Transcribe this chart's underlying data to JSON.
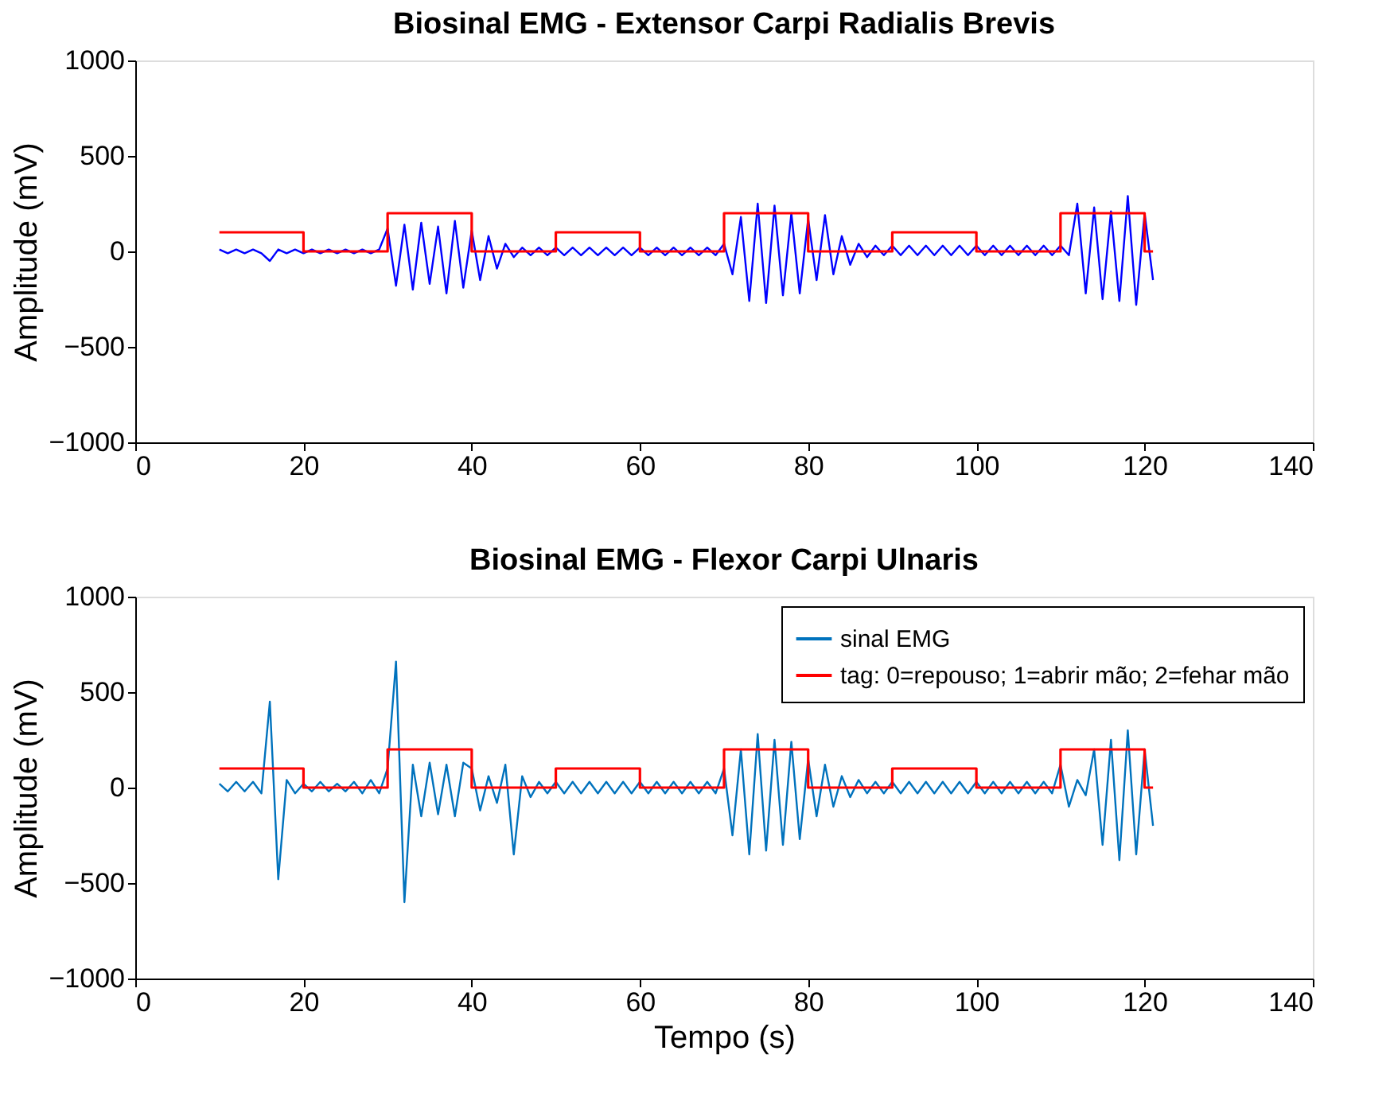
{
  "chart_data": [
    {
      "type": "line",
      "title": "Biosinal EMG - Extensor Carpi Radialis Brevis",
      "ylabel": "Amplitude (mV)",
      "xlim": [
        0,
        140
      ],
      "xticks": [
        0,
        20,
        40,
        60,
        80,
        100,
        120,
        140
      ],
      "ylim": [
        -1000,
        1000
      ],
      "yticks": [
        -1000,
        -500,
        0,
        500,
        1000
      ],
      "grid": false,
      "legend": false,
      "series": [
        {
          "type": "line",
          "color": "#0000ff",
          "x": [
            10,
            11,
            12,
            13,
            14,
            15,
            16,
            17,
            18,
            19,
            20,
            21,
            22,
            23,
            24,
            25,
            26,
            27,
            28,
            29,
            30,
            31,
            32,
            33,
            34,
            35,
            36,
            37,
            38,
            39,
            40,
            41,
            42,
            43,
            44,
            45,
            46,
            47,
            48,
            49,
            50,
            51,
            52,
            53,
            54,
            55,
            56,
            57,
            58,
            59,
            60,
            61,
            62,
            63,
            64,
            65,
            66,
            67,
            68,
            69,
            70,
            71,
            72,
            73,
            74,
            75,
            76,
            77,
            78,
            79,
            80,
            81,
            82,
            83,
            84,
            85,
            86,
            87,
            88,
            89,
            90,
            91,
            92,
            93,
            94,
            95,
            96,
            97,
            98,
            99,
            100,
            101,
            102,
            103,
            104,
            105,
            106,
            107,
            108,
            109,
            110,
            111,
            112,
            113,
            114,
            115,
            116,
            117,
            118,
            119,
            120,
            121
          ],
          "values": [
            10,
            -10,
            10,
            -10,
            10,
            -10,
            -50,
            10,
            -10,
            10,
            -10,
            10,
            -10,
            10,
            -10,
            10,
            -10,
            10,
            -10,
            10,
            120,
            -180,
            140,
            -200,
            150,
            -170,
            130,
            -220,
            160,
            -190,
            110,
            -150,
            80,
            -90,
            40,
            -30,
            20,
            -20,
            20,
            -20,
            20,
            -20,
            20,
            -20,
            20,
            -20,
            20,
            -20,
            20,
            -20,
            20,
            -20,
            20,
            -20,
            20,
            -20,
            20,
            -20,
            20,
            -20,
            40,
            -120,
            180,
            -260,
            250,
            -270,
            240,
            -230,
            200,
            -220,
            170,
            -150,
            190,
            -120,
            80,
            -70,
            40,
            -30,
            30,
            -20,
            30,
            -20,
            30,
            -20,
            30,
            -20,
            30,
            -20,
            30,
            -20,
            30,
            -20,
            30,
            -20,
            30,
            -20,
            30,
            -20,
            30,
            -20,
            30,
            -20,
            250,
            -220,
            230,
            -250,
            210,
            -260,
            290,
            -280,
            200,
            -150
          ]
        },
        {
          "type": "step",
          "color": "#ff0000",
          "x": [
            10,
            20,
            30,
            40,
            50,
            60,
            70,
            80,
            90,
            100,
            110,
            120,
            121
          ],
          "values": [
            100,
            0,
            200,
            0,
            100,
            0,
            200,
            0,
            100,
            0,
            200,
            0,
            0
          ]
        }
      ]
    },
    {
      "type": "line",
      "title": "Biosinal EMG - Flexor Carpi Ulnaris",
      "xlabel": "Tempo (s)",
      "ylabel": "Amplitude (mV)",
      "xlim": [
        0,
        140
      ],
      "xticks": [
        0,
        20,
        40,
        60,
        80,
        100,
        120,
        140
      ],
      "ylim": [
        -1000,
        1000
      ],
      "yticks": [
        -1000,
        -500,
        0,
        500,
        1000
      ],
      "grid": false,
      "legend": "top right",
      "series": [
        {
          "type": "line",
          "name": "sinal EMG",
          "color": "#0072bd",
          "x": [
            10,
            11,
            12,
            13,
            14,
            15,
            16,
            17,
            18,
            19,
            20,
            21,
            22,
            23,
            24,
            25,
            26,
            27,
            28,
            29,
            30,
            31,
            32,
            33,
            34,
            35,
            36,
            37,
            38,
            39,
            40,
            41,
            42,
            43,
            44,
            45,
            46,
            47,
            48,
            49,
            50,
            51,
            52,
            53,
            54,
            55,
            56,
            57,
            58,
            59,
            60,
            61,
            62,
            63,
            64,
            65,
            66,
            67,
            68,
            69,
            70,
            71,
            72,
            73,
            74,
            75,
            76,
            77,
            78,
            79,
            80,
            81,
            82,
            83,
            84,
            85,
            86,
            87,
            88,
            89,
            90,
            91,
            92,
            93,
            94,
            95,
            96,
            97,
            98,
            99,
            100,
            101,
            102,
            103,
            104,
            105,
            106,
            107,
            108,
            109,
            110,
            111,
            112,
            113,
            114,
            115,
            116,
            117,
            118,
            119,
            120,
            121
          ],
          "values": [
            20,
            -20,
            30,
            -20,
            30,
            -30,
            450,
            -480,
            40,
            -30,
            20,
            -20,
            30,
            -20,
            20,
            -20,
            30,
            -30,
            40,
            -30,
            100,
            660,
            -600,
            120,
            -150,
            130,
            -140,
            120,
            -150,
            130,
            100,
            -120,
            60,
            -80,
            120,
            -350,
            60,
            -50,
            30,
            -30,
            30,
            -30,
            30,
            -30,
            30,
            -30,
            30,
            -30,
            30,
            -30,
            30,
            -30,
            30,
            -30,
            30,
            -30,
            30,
            -30,
            30,
            -30,
            100,
            -250,
            200,
            -350,
            280,
            -330,
            250,
            -300,
            240,
            -270,
            150,
            -150,
            120,
            -100,
            60,
            -50,
            40,
            -30,
            30,
            -30,
            30,
            -30,
            30,
            -30,
            30,
            -30,
            30,
            -30,
            30,
            -30,
            30,
            -30,
            30,
            -30,
            30,
            -30,
            30,
            -30,
            30,
            -30,
            120,
            -100,
            40,
            -40,
            200,
            -300,
            250,
            -380,
            300,
            -350,
            200,
            -200
          ]
        },
        {
          "type": "step",
          "name": "tag: 0=repouso; 1=abrir mão; 2=fehar mão",
          "color": "#ff0000",
          "x": [
            10,
            20,
            30,
            40,
            50,
            60,
            70,
            80,
            90,
            100,
            110,
            120,
            121
          ],
          "values": [
            100,
            0,
            200,
            0,
            100,
            0,
            200,
            0,
            100,
            0,
            200,
            0,
            0
          ]
        }
      ]
    }
  ]
}
